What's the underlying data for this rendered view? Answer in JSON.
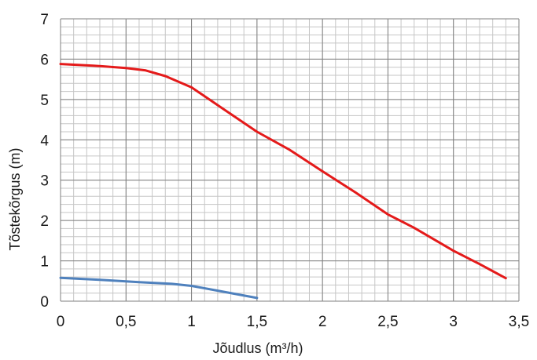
{
  "chart_data": {
    "type": "line",
    "title": "",
    "xlabel": "Jõudlus (m³/h)",
    "ylabel": "Tõstekõrgus (m)",
    "xlim": [
      0,
      3.5
    ],
    "ylim": [
      0,
      7
    ],
    "grid": true,
    "minor_grid": true,
    "x_ticks": [
      0,
      0.5,
      1,
      1.5,
      2,
      2.5,
      3,
      3.5
    ],
    "x_tick_labels": [
      "0",
      "0,5",
      "1",
      "1,5",
      "2",
      "2,5",
      "3",
      "3,5"
    ],
    "y_ticks": [
      0,
      1,
      2,
      3,
      4,
      5,
      6,
      7
    ],
    "y_tick_labels": [
      "0",
      "1",
      "2",
      "3",
      "4",
      "5",
      "6",
      "7"
    ],
    "series": [
      {
        "color": "#e41a1a",
        "points": [
          [
            0,
            5.88
          ],
          [
            0.25,
            5.84
          ],
          [
            0.5,
            5.78
          ],
          [
            0.65,
            5.72
          ],
          [
            0.8,
            5.58
          ],
          [
            1.0,
            5.3
          ],
          [
            1.25,
            4.75
          ],
          [
            1.5,
            4.2
          ],
          [
            1.75,
            3.75
          ],
          [
            2.0,
            3.22
          ],
          [
            2.25,
            2.7
          ],
          [
            2.5,
            2.15
          ],
          [
            2.7,
            1.82
          ],
          [
            3.0,
            1.25
          ],
          [
            3.2,
            0.92
          ],
          [
            3.4,
            0.57
          ]
        ]
      },
      {
        "color": "#4f81bd",
        "points": [
          [
            0,
            0.58
          ],
          [
            0.3,
            0.53
          ],
          [
            0.6,
            0.47
          ],
          [
            0.85,
            0.43
          ],
          [
            1.0,
            0.38
          ],
          [
            1.2,
            0.26
          ],
          [
            1.5,
            0.08
          ]
        ]
      }
    ]
  }
}
